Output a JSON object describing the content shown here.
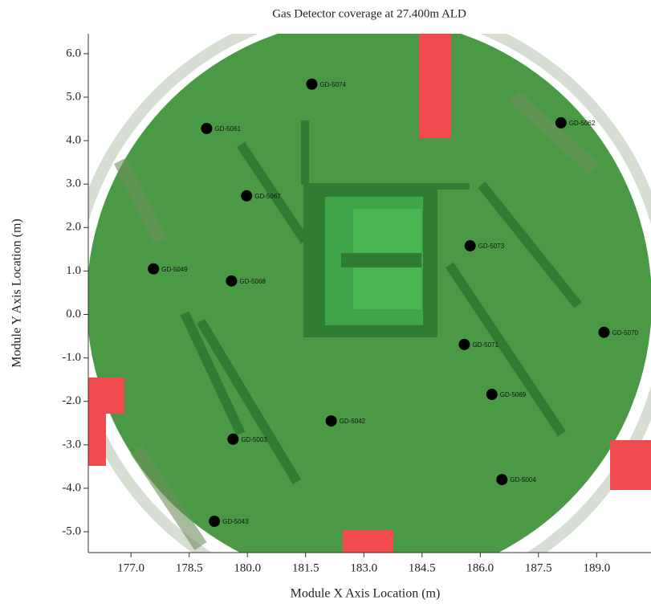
{
  "chart_data": {
    "type": "scatter",
    "title": "Gas Detector coverage at 27.400m ALD",
    "x_label": "Module X Axis Location (m)",
    "y_label": "Module Y Axis Location (m)",
    "color": "#000000",
    "x": [
      181.66,
      178.95,
      179.98,
      177.58,
      179.59,
      188.08,
      185.74,
      185.59,
      189.19,
      186.3,
      182.16,
      179.63,
      186.56,
      179.15
    ],
    "values": [
      5.3,
      4.28,
      2.73,
      1.05,
      0.77,
      4.41,
      1.58,
      -0.69,
      -0.41,
      -1.84,
      -2.45,
      -2.87,
      -3.8,
      -4.76
    ],
    "point_labels": [
      "GD-5074",
      "GD-5061",
      "GD-5067",
      "GD-5049",
      "GD-5068",
      "GD-5062",
      "GD-5073",
      "GD-5071",
      "GD-5070",
      "GD-5069",
      "GD-5042",
      "GD-5003",
      "GD-5004",
      "GD-5043"
    ],
    "xlim": [
      175.9,
      190.4
    ],
    "ylim": [
      -5.48,
      6.46
    ],
    "xticks": [
      {
        "value": 177,
        "label": "177.0"
      },
      178.5,
      {
        "value": 180,
        "label": "180.0"
      },
      181.5,
      {
        "value": 183,
        "label": "183.0"
      },
      184.5,
      {
        "value": 186,
        "label": "186.0"
      },
      187.5,
      {
        "value": 189,
        "label": "189.0"
      }
    ],
    "yticks": [
      {
        "value": 6,
        "label": "6.0"
      },
      {
        "value": 5,
        "label": "5.0"
      },
      {
        "value": 4,
        "label": "4.0"
      },
      {
        "value": 3,
        "label": "3.0"
      },
      {
        "value": 2,
        "label": "2.0"
      },
      {
        "value": 1,
        "label": "1.0"
      },
      {
        "value": 0,
        "label": "0.0"
      },
      {
        "value": -1,
        "label": "-1.0"
      },
      {
        "value": -2,
        "label": "-2.0"
      },
      {
        "value": -3,
        "label": "-3.0"
      },
      {
        "value": -4,
        "label": "-4.0"
      },
      {
        "value": -5,
        "label": "-5.0"
      }
    ]
  }
}
